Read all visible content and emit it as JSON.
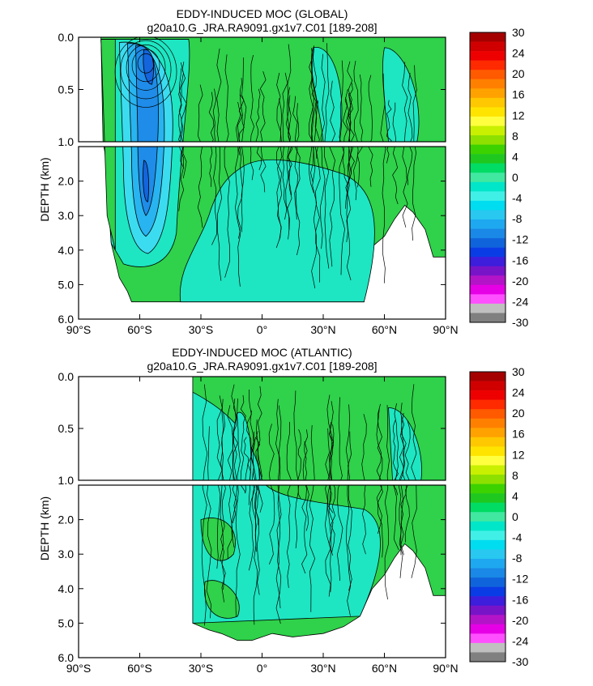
{
  "chart_data": [
    {
      "type": "heatmap",
      "title": "EDDY-INDUCED MOC (GLOBAL)",
      "subtitle": "g20a10.G_JRA.RA9091.gx1v7.C01 [189-208]",
      "ylabel": "DEPTH (km)",
      "x_ticks": [
        "90°S",
        "60°S",
        "30°S",
        "0°",
        "30°N",
        "60°N",
        "90°N"
      ],
      "y_ticks_upper": [
        "0.0",
        "0.5",
        "1.0"
      ],
      "y_ticks_lower": [
        "2.0",
        "3.0",
        "4.0",
        "5.0",
        "6.0"
      ],
      "xlim": [
        -90,
        90
      ],
      "ylim_upper": [
        0,
        1
      ],
      "ylim_lower": [
        1,
        6
      ],
      "colorbar_labels": [
        "30",
        "24",
        "20",
        "16",
        "12",
        "8",
        "4",
        "0",
        "-4",
        "-8",
        "-12",
        "-16",
        "-20",
        "-24",
        "-30"
      ],
      "data_extent": {
        "lat_start": -79,
        "lat_end": 90
      }
    },
    {
      "type": "heatmap",
      "title": "EDDY-INDUCED MOC (ATLANTIC)",
      "subtitle": "g20a10.G_JRA.RA9091.gx1v7.C01 [189-208]",
      "ylabel": "DEPTH (km)",
      "x_ticks": [
        "90°S",
        "60°S",
        "30°S",
        "0°",
        "30°N",
        "60°N",
        "90°N"
      ],
      "y_ticks_upper": [
        "0.0",
        "0.5",
        "1.0"
      ],
      "y_ticks_lower": [
        "2.0",
        "3.0",
        "4.0",
        "5.0",
        "6.0"
      ],
      "xlim": [
        -90,
        90
      ],
      "ylim_upper": [
        0,
        1
      ],
      "ylim_lower": [
        1,
        6
      ],
      "colorbar_labels": [
        "30",
        "24",
        "20",
        "16",
        "12",
        "8",
        "4",
        "0",
        "-4",
        "-8",
        "-12",
        "-16",
        "-20",
        "-24",
        "-30"
      ],
      "data_extent": {
        "lat_start": -34,
        "lat_end": 90
      }
    }
  ],
  "colorbar_colors": [
    "#a50000",
    "#d10000",
    "#ee0000",
    "#ff2a00",
    "#ff5a00",
    "#ff8000",
    "#ffa200",
    "#ffc800",
    "#ffe400",
    "#ffff40",
    "#c8f000",
    "#8ee000",
    "#3cd200",
    "#1ec81e",
    "#00dc64",
    "#40e8a0",
    "#00e6c8",
    "#40f0e6",
    "#00dcf0",
    "#28c8f0",
    "#1ea8f0",
    "#1a88e6",
    "#0f64dc",
    "#0a3ce6",
    "#3c1edc",
    "#7814c8",
    "#b414c8",
    "#e600e6",
    "#ff50ff",
    "#c0c0c0",
    "#808080"
  ],
  "palette": {
    "green": "#2fd24a",
    "green_light": "#55e07a",
    "aqua": "#1ee6c2",
    "cyan": "#3cdcf0",
    "blue_light": "#28b4f0",
    "blue": "#1e8ce8",
    "blue_dark": "#1464dc"
  }
}
